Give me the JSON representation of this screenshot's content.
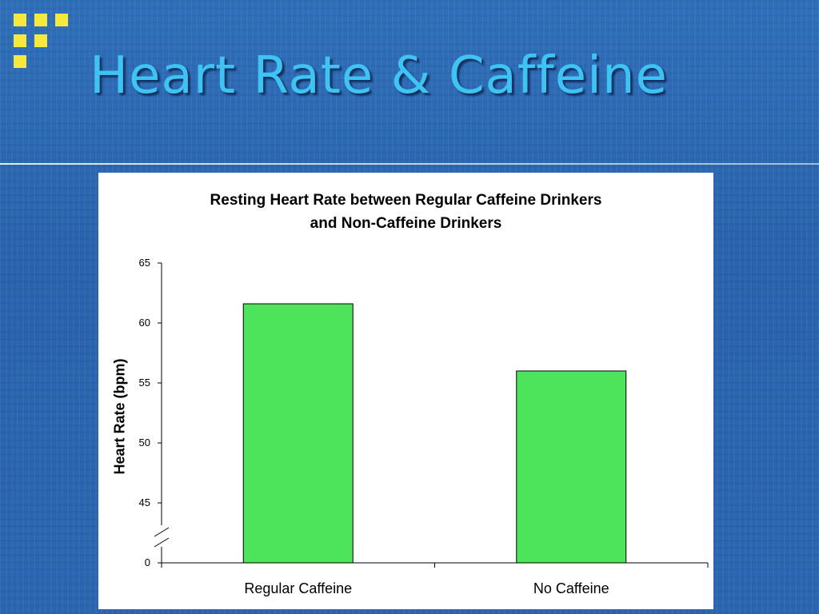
{
  "slide": {
    "title": "Heart Rate & Caffeine",
    "accent_color": "#3fc3f2",
    "decoration_color": "#f7e93b",
    "background_color": "#2b66b2"
  },
  "chart_data": {
    "type": "bar",
    "title_lines": [
      "Resting Heart Rate between Regular Caffeine Drinkers",
      "and Non-Caffeine Drinkers"
    ],
    "xlabel": "",
    "ylabel": "Heart Rate (bpm)",
    "categories": [
      "Regular Caffeine",
      "No Caffeine"
    ],
    "values": [
      61.6,
      56.0
    ],
    "yticks": [
      0,
      45,
      50,
      55,
      60,
      65
    ],
    "ylim": [
      45,
      65
    ],
    "axis_break": true,
    "bar_color": "#4de35a",
    "grid": false,
    "legend": "none"
  }
}
